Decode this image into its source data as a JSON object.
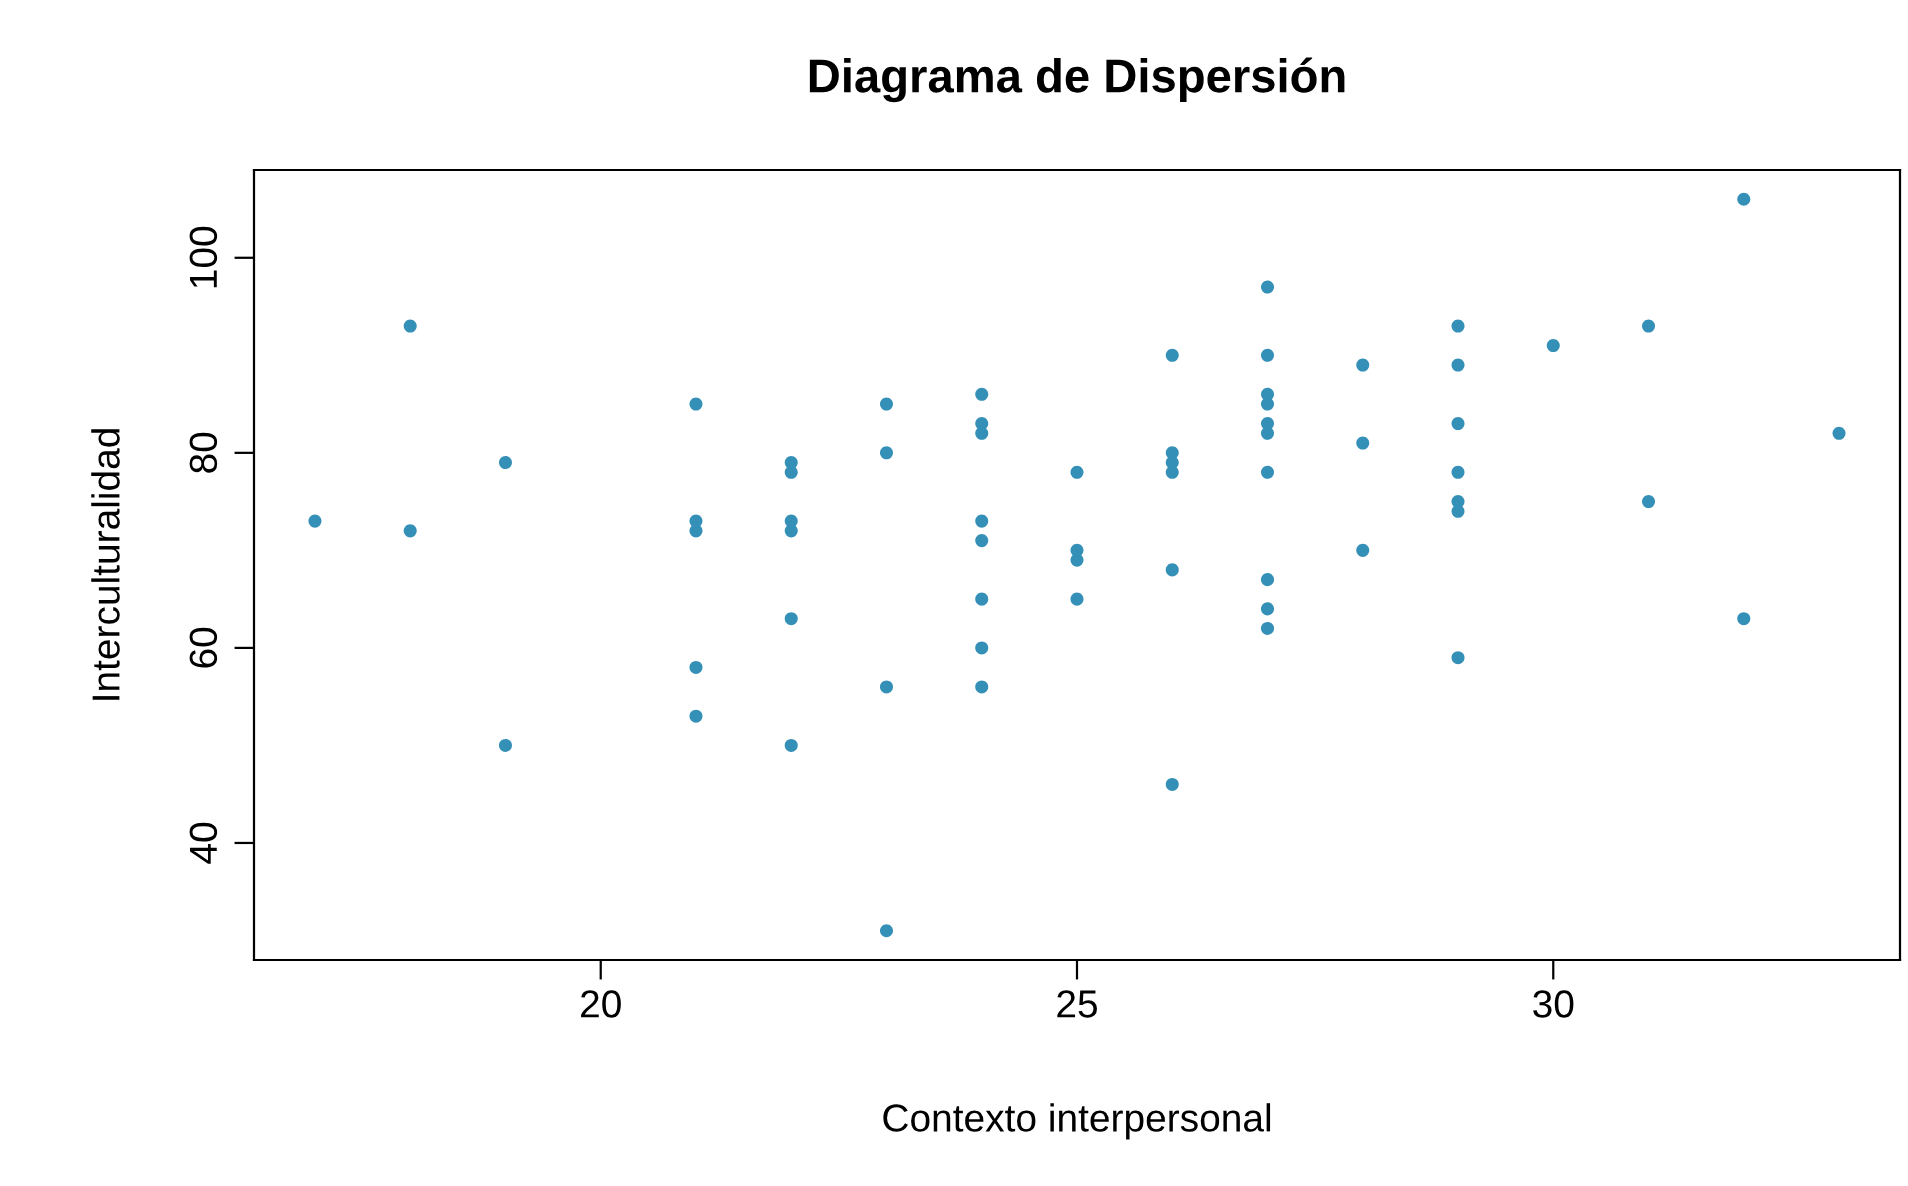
{
  "chart_data": {
    "type": "scatter",
    "title": "Diagrama de Dispersión",
    "xlabel": "Contexto interpersonal",
    "ylabel": "Interculturalidad",
    "x": [
      17,
      18,
      18,
      19,
      19,
      21,
      21,
      21,
      21,
      21,
      22,
      22,
      22,
      22,
      22,
      22,
      23,
      23,
      23,
      23,
      24,
      24,
      24,
      24,
      24,
      24,
      24,
      24,
      25,
      25,
      25,
      25,
      26,
      26,
      26,
      26,
      26,
      26,
      27,
      27,
      27,
      27,
      27,
      27,
      27,
      27,
      27,
      27,
      28,
      28,
      28,
      29,
      29,
      29,
      29,
      29,
      29,
      29,
      30,
      31,
      31,
      32,
      32,
      33
    ],
    "values": [
      73,
      93,
      72,
      79,
      50,
      85,
      72,
      73,
      58,
      53,
      78,
      79,
      72,
      73,
      63,
      50,
      85,
      80,
      56,
      31,
      86,
      82,
      83,
      73,
      71,
      65,
      60,
      56,
      78,
      69,
      70,
      65,
      90,
      78,
      79,
      80,
      68,
      46,
      97,
      90,
      86,
      85,
      83,
      82,
      78,
      67,
      64,
      62,
      89,
      81,
      70,
      93,
      89,
      83,
      78,
      74,
      75,
      59,
      91,
      93,
      75,
      106,
      63,
      82
    ],
    "color": "#3590b8",
    "marker": "circle",
    "grid": false,
    "legend": false,
    "xlim": [
      16.36,
      33.64
    ],
    "xticks": [
      20,
      25,
      30
    ],
    "ylim": [
      28,
      109
    ],
    "yticks": [
      40,
      60,
      80,
      100
    ]
  }
}
